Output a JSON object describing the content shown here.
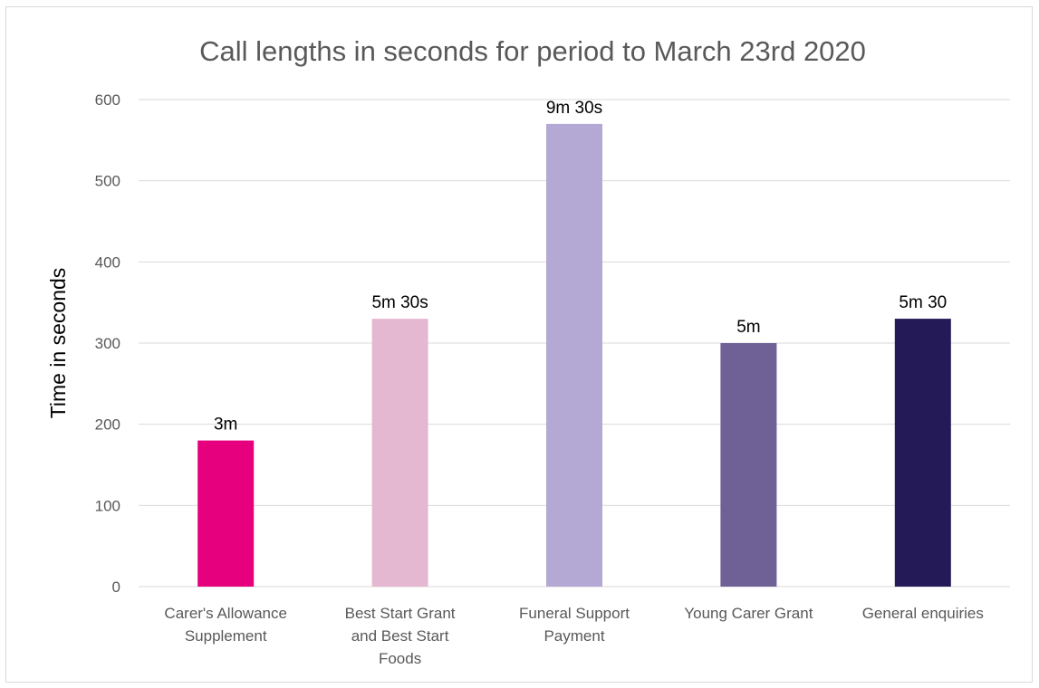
{
  "chart_data": {
    "type": "bar",
    "title": "Call lengths in seconds for period to March 23rd 2020",
    "ylabel": "Time in seconds",
    "xlabel": "",
    "ylim": [
      0,
      600
    ],
    "yticks": [
      0,
      100,
      200,
      300,
      400,
      500,
      600
    ],
    "grid": true,
    "legend": "none",
    "categories": [
      [
        "Carer's Allowance",
        "Supplement"
      ],
      [
        "Best Start Grant",
        "and Best Start",
        "Foods"
      ],
      [
        "Funeral Support",
        "Payment"
      ],
      [
        "Young Carer Grant"
      ],
      [
        "General enquiries"
      ]
    ],
    "values": [
      180,
      330,
      570,
      300,
      330
    ],
    "data_labels": [
      "3m",
      "5m 30s",
      "9m 30s",
      "5m",
      "5m 30"
    ],
    "colors": [
      "#e6007e",
      "#e5b8d2",
      "#b3a9d4",
      "#6f6196",
      "#231a57"
    ]
  }
}
